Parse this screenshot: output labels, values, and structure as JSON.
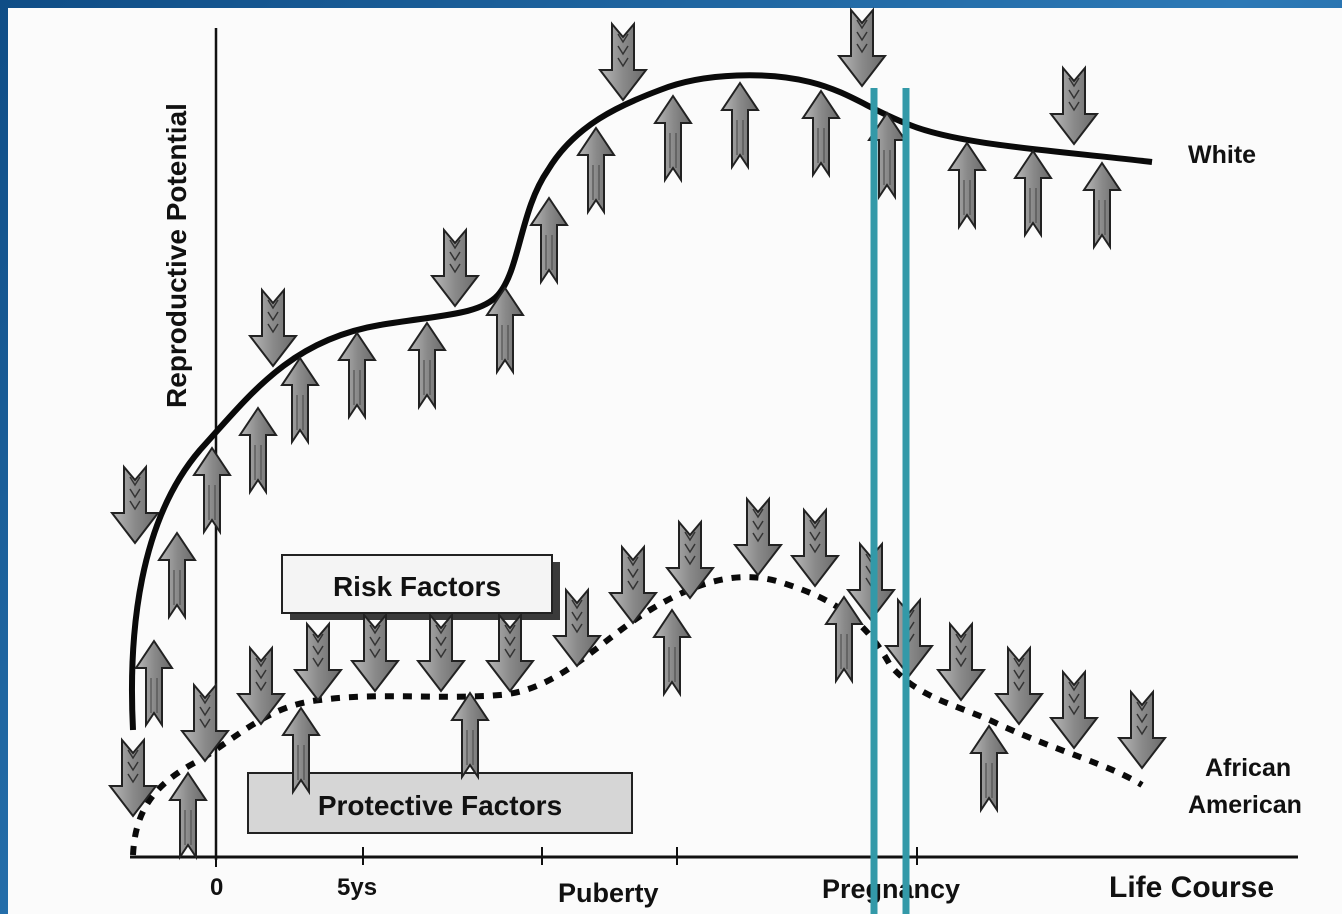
{
  "axis": {
    "y_label": "Reproductive Potential",
    "x_label": "Life Course",
    "ticks": [
      "0",
      "5ys",
      "Puberty",
      "Pregnancy"
    ]
  },
  "curves": {
    "top_label": "White",
    "bottom_label_line1": "African",
    "bottom_label_line2": "American"
  },
  "legend": {
    "risk": "Risk Factors",
    "protective": "Protective Factors"
  },
  "colors": {
    "arrow_fill": "#8f8f8f",
    "curve": "#0a0a0a",
    "highlight_lines": "#3399a8",
    "background": "#1f5f98"
  }
}
